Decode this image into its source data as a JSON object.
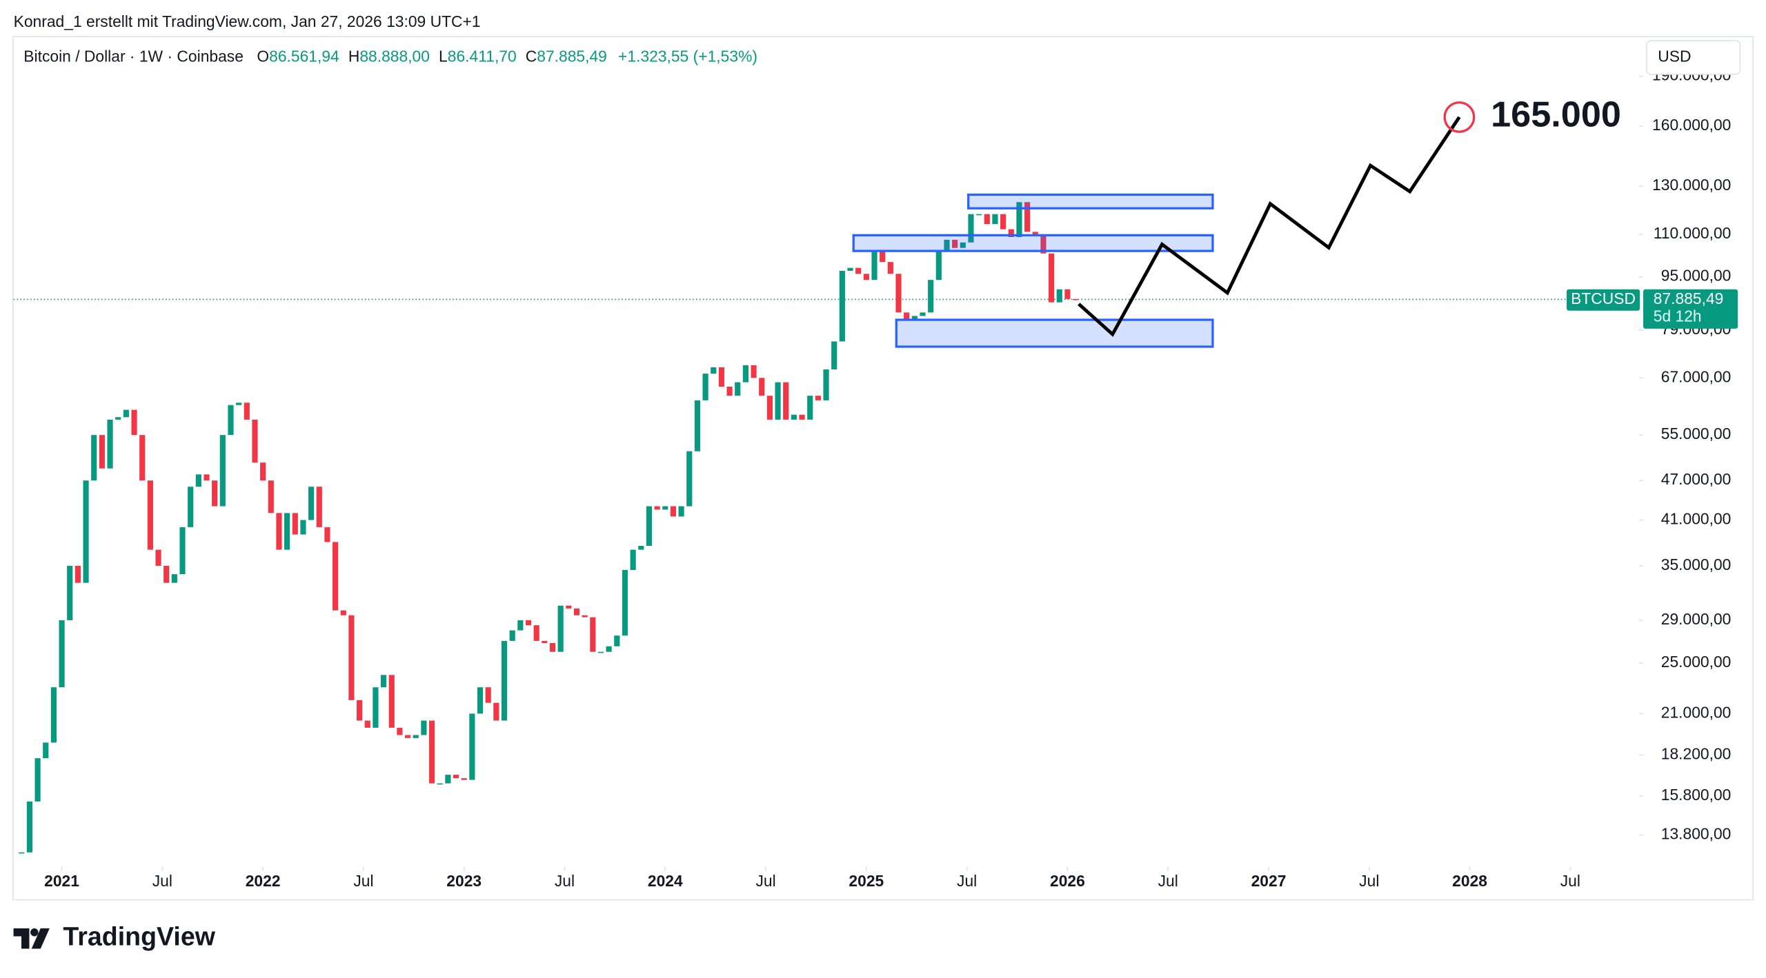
{
  "header": {
    "attribution": "Konrad_1 erstellt mit TradingView.com, Jan 27, 2026 13:09 UTC+1",
    "logo_text": "TradingView"
  },
  "chart_data": {
    "type": "candlestick",
    "title": "Bitcoin / Dollar · 1W · Coinbase",
    "ohlc": [
      {
        "key": "O",
        "value": "86.561,94"
      },
      {
        "key": "H",
        "value": "88.888,00"
      },
      {
        "key": "L",
        "value": "86.411,70"
      },
      {
        "key": "C",
        "value": "87.885,49"
      }
    ],
    "change": "+1.323,55 (+1,53%)",
    "currency": "USD",
    "symbol": "BTCUSD",
    "last_price": 87885.49,
    "last_price_label": "87.885,49",
    "countdown": "5d 12h",
    "colors": {
      "up": "#089981",
      "down": "#f23645"
    },
    "log_scale": true,
    "grid": false,
    "x": [
      2020.8,
      2020.84,
      2020.88,
      2020.92,
      2020.96,
      2021.0,
      2021.04,
      2021.08,
      2021.12,
      2021.16,
      2021.2,
      2021.24,
      2021.28,
      2021.32,
      2021.36,
      2021.4,
      2021.44,
      2021.48,
      2021.52,
      2021.56,
      2021.6,
      2021.64,
      2021.68,
      2021.72,
      2021.76,
      2021.8,
      2021.84,
      2021.88,
      2021.92,
      2021.96,
      2022.0,
      2022.04,
      2022.08,
      2022.12,
      2022.16,
      2022.2,
      2022.24,
      2022.28,
      2022.32,
      2022.36,
      2022.4,
      2022.44,
      2022.48,
      2022.52,
      2022.56,
      2022.6,
      2022.64,
      2022.68,
      2022.72,
      2022.76,
      2022.8,
      2022.84,
      2022.88,
      2022.92,
      2022.96,
      2023.0,
      2023.04,
      2023.08,
      2023.12,
      2023.16,
      2023.2,
      2023.24,
      2023.28,
      2023.32,
      2023.36,
      2023.4,
      2023.44,
      2023.48,
      2023.52,
      2023.56,
      2023.6,
      2023.64,
      2023.68,
      2023.72,
      2023.76,
      2023.8,
      2023.84,
      2023.88,
      2023.92,
      2023.96,
      2024.0,
      2024.04,
      2024.08,
      2024.12,
      2024.16,
      2024.2,
      2024.24,
      2024.28,
      2024.32,
      2024.36,
      2024.4,
      2024.44,
      2024.48,
      2024.52,
      2024.56,
      2024.6,
      2024.64,
      2024.68,
      2024.72,
      2024.76,
      2024.8,
      2024.84,
      2024.88,
      2024.92,
      2024.96,
      2025.0,
      2025.04,
      2025.08,
      2025.12,
      2025.16,
      2025.2,
      2025.24,
      2025.28,
      2025.32,
      2025.36,
      2025.4,
      2025.44,
      2025.48,
      2025.52,
      2025.56,
      2025.6,
      2025.64,
      2025.68,
      2025.72,
      2025.76,
      2025.8,
      2025.84,
      2025.88,
      2025.92,
      2025.96,
      2026.0,
      2026.04
    ],
    "close": [
      13000,
      15500,
      18000,
      19000,
      23000,
      29000,
      35000,
      33000,
      47000,
      55000,
      49000,
      58000,
      58500,
      60000,
      55000,
      47000,
      37000,
      35000,
      33000,
      34000,
      40000,
      46000,
      48000,
      47000,
      43000,
      55000,
      61000,
      61500,
      58000,
      50000,
      47000,
      42000,
      37000,
      42000,
      39000,
      41000,
      46000,
      40000,
      38000,
      30000,
      29500,
      22000,
      20500,
      20000,
      23000,
      24000,
      20000,
      19500,
      19300,
      19500,
      20500,
      16500,
      16500,
      17000,
      16800,
      16700,
      21000,
      23000,
      21800,
      20500,
      27000,
      28000,
      29000,
      28500,
      27000,
      26800,
      26000,
      30500,
      30200,
      29500,
      29300,
      26000,
      26000,
      26500,
      27500,
      34500,
      37000,
      37500,
      43000,
      42500,
      43000,
      41500,
      43000,
      52000,
      62000,
      68000,
      69500,
      65000,
      63000,
      66000,
      70000,
      67000,
      63000,
      58000,
      66000,
      58000,
      59000,
      58000,
      63000,
      62000,
      69000,
      76000,
      97000,
      98000,
      96000,
      94000,
      104000,
      100000,
      96000,
      84000,
      82000,
      83000,
      84000,
      94000,
      104000,
      108000,
      105000,
      107000,
      118000,
      118000,
      114000,
      118000,
      112000,
      109000,
      123000,
      111000,
      110000,
      103000,
      87000,
      91000,
      88000,
      87885.49
    ],
    "xlim": [
      2020.76,
      2028.84
    ],
    "xticks": [
      {
        "value": 2021,
        "label": "2021"
      },
      {
        "value": 2021.5,
        "label": "Jul"
      },
      {
        "value": 2022,
        "label": "2022"
      },
      {
        "value": 2022.5,
        "label": "Jul"
      },
      {
        "value": 2023,
        "label": "2023"
      },
      {
        "value": 2023.5,
        "label": "Jul"
      },
      {
        "value": 2024,
        "label": "2024"
      },
      {
        "value": 2024.5,
        "label": "Jul"
      },
      {
        "value": 2025,
        "label": "2025"
      },
      {
        "value": 2025.5,
        "label": "Jul"
      },
      {
        "value": 2026,
        "label": "2026"
      },
      {
        "value": 2026.5,
        "label": "Jul"
      },
      {
        "value": 2027,
        "label": "2027"
      },
      {
        "value": 2027.5,
        "label": "Jul"
      },
      {
        "value": 2028,
        "label": "2028"
      },
      {
        "value": 2028.5,
        "label": "Jul"
      }
    ],
    "ylim": [
      12380,
      215800
    ],
    "yticks": [
      {
        "value": 13800,
        "label": "13.800,00"
      },
      {
        "value": 15800,
        "label": "15.800,00"
      },
      {
        "value": 18200,
        "label": "18.200,00"
      },
      {
        "value": 21000,
        "label": "21.000,00"
      },
      {
        "value": 25000,
        "label": "25.000,00"
      },
      {
        "value": 29000,
        "label": "29.000,00"
      },
      {
        "value": 35000,
        "label": "35.000,00"
      },
      {
        "value": 41000,
        "label": "41.000,00"
      },
      {
        "value": 47000,
        "label": "47.000,00"
      },
      {
        "value": 55000,
        "label": "55.000,00"
      },
      {
        "value": 67000,
        "label": "67.000,00"
      },
      {
        "value": 79000,
        "label": "79.000,00"
      },
      {
        "value": 95000,
        "label": "95.000,00"
      },
      {
        "value": 110000,
        "label": "110.000,00"
      },
      {
        "value": 130000,
        "label": "130.000,00"
      },
      {
        "value": 160000,
        "label": "160.000,00"
      },
      {
        "value": 190000,
        "label": "190.000,00"
      }
    ],
    "zones": [
      {
        "x": [
          2025.507,
          2026.722
        ],
        "y": [
          120400,
          126200
        ],
        "color": "#2962ff"
      },
      {
        "x": [
          2024.936,
          2026.722
        ],
        "y": [
          103900,
          109700
        ],
        "color": "#2962ff"
      },
      {
        "x": [
          2025.149,
          2026.722
        ],
        "y": [
          74640,
          81900
        ],
        "color": "#2962ff"
      }
    ],
    "projection": {
      "x": [
        2026.056,
        2026.224,
        2026.47,
        2026.795,
        2027.008,
        2027.299,
        2027.506,
        2027.702,
        2027.948
      ],
      "y": [
        86500,
        77900,
        106300,
        89900,
        122300,
        105100,
        139600,
        127600,
        165000
      ],
      "color": "#000000"
    },
    "target": {
      "value": 165000,
      "label": "165.000",
      "color": "#f23645"
    }
  }
}
